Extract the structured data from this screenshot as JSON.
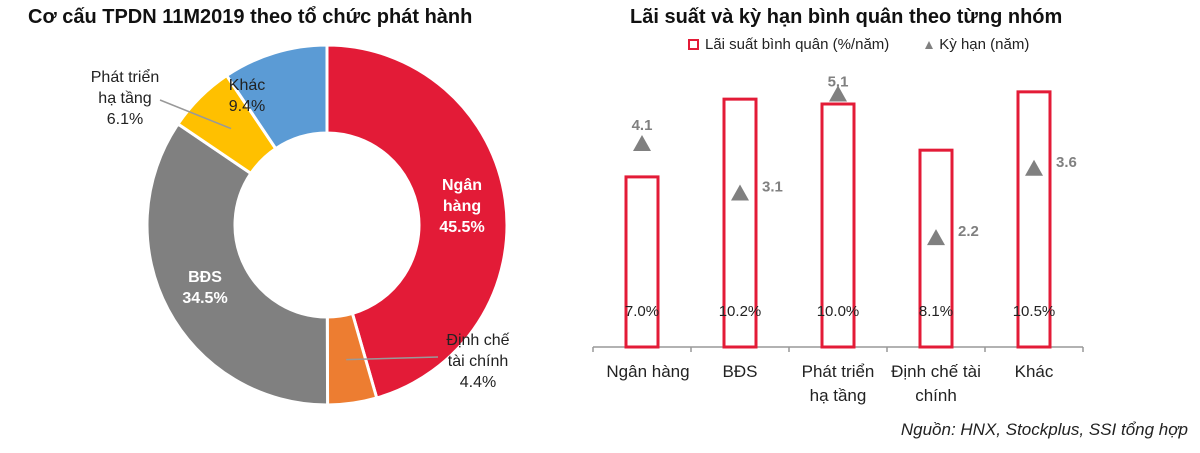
{
  "chart_data": [
    {
      "type": "pie",
      "subtype": "donut",
      "title": "Cơ cấu TPDN 11M2019 theo tổ chức phát hành",
      "slices": [
        {
          "label": "Ngân hàng",
          "value": 45.5,
          "display": "45.5%",
          "color": "#e31b37"
        },
        {
          "label": "Định chế tài chính",
          "value": 4.4,
          "display": "4.4%",
          "color": "#ed7d31"
        },
        {
          "label": "BĐS",
          "value": 34.5,
          "display": "34.5%",
          "color": "#808080"
        },
        {
          "label": "Phát triển hạ tầng",
          "value": 6.1,
          "display": "6.1%",
          "color": "#ffc000"
        },
        {
          "label": "Khác",
          "value": 9.4,
          "display": "9.4%",
          "color": "#5b9bd5"
        }
      ]
    },
    {
      "type": "bar",
      "title": "Lãi suất và kỳ hạn bình quân theo từng nhóm",
      "categories": [
        "Ngân hàng",
        "BĐS",
        "Phát triển hạ tầng",
        "Định chế tài chính",
        "Khác"
      ],
      "category_lines": [
        [
          "Ngân hàng"
        ],
        [
          "BĐS"
        ],
        [
          "Phát triển",
          "hạ tầng"
        ],
        [
          "Định chế tài",
          "chính"
        ],
        [
          "Khác"
        ]
      ],
      "series": [
        {
          "name": "Lãi suất bình quân (%/năm)",
          "kind": "bar-outline",
          "color": "#e31b37",
          "values": [
            7.0,
            10.2,
            10.0,
            8.1,
            10.5
          ],
          "labels": [
            "7.0%",
            "10.2%",
            "10.0%",
            "8.1%",
            "10.5%"
          ]
        },
        {
          "name": "Kỳ hạn (năm)",
          "kind": "triangle-marker",
          "color": "#808080",
          "values": [
            4.1,
            3.1,
            5.1,
            2.2,
            3.6
          ],
          "labels": [
            "4.1",
            "3.1",
            "5.1",
            "2.2",
            "3.6"
          ]
        }
      ],
      "legend": "top",
      "grid": false
    }
  ],
  "source": "Nguồn: HNX, Stockplus, SSI tổng hợp"
}
